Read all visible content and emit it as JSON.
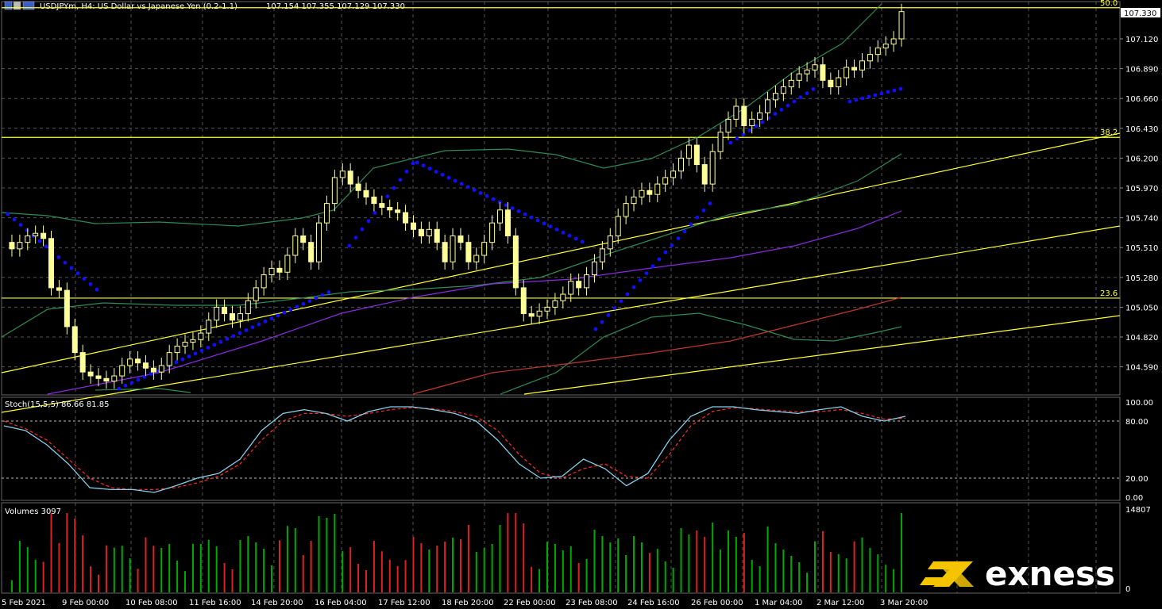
{
  "header": {
    "symbol_title": "USDJPYm, H4:  US Dollar vs Japanese Yen (0.2-1.1)",
    "ohlc": "107.154 107.355 107.129 107.330"
  },
  "price_axis": {
    "current_price": "107.330",
    "ticks": [
      "107.120",
      "106.890",
      "106.660",
      "106.430",
      "106.200",
      "105.970",
      "105.740",
      "105.510",
      "105.280",
      "105.050",
      "104.820",
      "104.590"
    ]
  },
  "fib_levels": [
    {
      "label": "50.0",
      "price": 107.36
    },
    {
      "label": "38.2",
      "price": 106.36
    },
    {
      "label": "23.6",
      "price": 105.12
    }
  ],
  "stoch": {
    "title": "Stoch(15,5,5) 86.66 81.85",
    "ticks": [
      "100.00",
      "80.00",
      "20.00",
      "0.00"
    ]
  },
  "volumes": {
    "title": "Volumes 3097",
    "max_label": "14807",
    "zero_label": "0"
  },
  "time_axis": {
    "labels": [
      "5 Feb 2021",
      "9 Feb 00:00",
      "10 Feb 08:00",
      "11 Feb 16:00",
      "14 Feb 20:00",
      "16 Feb 04:00",
      "17 Feb 12:00",
      "18 Feb 20:00",
      "22 Feb 00:00",
      "23 Feb 08:00",
      "24 Feb 16:00",
      "26 Feb 00:00",
      "1 Mar 04:00",
      "2 Mar 12:00",
      "3 Mar 20:00"
    ]
  },
  "brand": {
    "name": "exness"
  },
  "colors": {
    "candle": "#ffff99",
    "fib": "#ffff33",
    "bollinger": "#2e8b57",
    "sar": "#1010ff",
    "ma_purple": "#8a2be2",
    "ma_red": "#c0392b",
    "stoch_main": "#87ceeb",
    "stoch_signal": "#ff2a2a",
    "vol_up": "#00aa00",
    "vol_down": "#dd2222"
  },
  "chart_data": {
    "type": "candlestick",
    "title": "USDJPYm, H4:  US Dollar vs Japanese Yen (0.2-1.1)",
    "close_prices": [
      105.5,
      105.55,
      105.6,
      105.62,
      105.58,
      105.2,
      105.18,
      104.9,
      104.7,
      104.55,
      104.52,
      104.5,
      104.48,
      104.52,
      104.6,
      104.65,
      104.62,
      104.58,
      104.55,
      104.6,
      104.7,
      104.75,
      104.78,
      104.8,
      104.85,
      104.95,
      105.05,
      105.0,
      104.95,
      105.0,
      105.1,
      105.2,
      105.3,
      105.35,
      105.32,
      105.45,
      105.6,
      105.55,
      105.4,
      105.7,
      105.85,
      106.05,
      106.1,
      106.0,
      105.95,
      105.9,
      105.85,
      105.82,
      105.8,
      105.78,
      105.7,
      105.65,
      105.6,
      105.65,
      105.55,
      105.4,
      105.6,
      105.55,
      105.4,
      105.45,
      105.55,
      105.7,
      105.8,
      105.6,
      105.2,
      105.0,
      104.98,
      105.02,
      105.05,
      105.1,
      105.15,
      105.25,
      105.2,
      105.3,
      105.4,
      105.5,
      105.6,
      105.75,
      105.85,
      105.9,
      105.95,
      105.92,
      106.0,
      106.05,
      106.1,
      106.2,
      106.3,
      106.15,
      106.0,
      106.25,
      106.4,
      106.5,
      106.6,
      106.45,
      106.5,
      106.55,
      106.65,
      106.7,
      106.75,
      106.8,
      106.85,
      106.88,
      106.92,
      106.8,
      106.75,
      106.82,
      106.9,
      106.88,
      106.95,
      107.0,
      107.05,
      107.08,
      107.12,
      107.33
    ],
    "stoch_main": [
      75,
      70,
      55,
      35,
      10,
      8,
      8,
      5,
      12,
      20,
      25,
      40,
      70,
      88,
      92,
      88,
      80,
      90,
      95,
      95,
      92,
      88,
      80,
      60,
      35,
      20,
      22,
      40,
      30,
      12,
      25,
      60,
      85,
      95,
      95,
      92,
      90,
      88,
      92,
      95,
      85,
      80,
      85
    ],
    "stoch_signal": [
      80,
      72,
      60,
      40,
      20,
      10,
      8,
      8,
      10,
      15,
      22,
      35,
      60,
      80,
      88,
      88,
      85,
      88,
      92,
      94,
      93,
      90,
      85,
      70,
      45,
      25,
      20,
      30,
      35,
      22,
      20,
      45,
      75,
      90,
      94,
      93,
      91,
      90,
      90,
      92,
      88,
      82,
      83
    ]
  }
}
